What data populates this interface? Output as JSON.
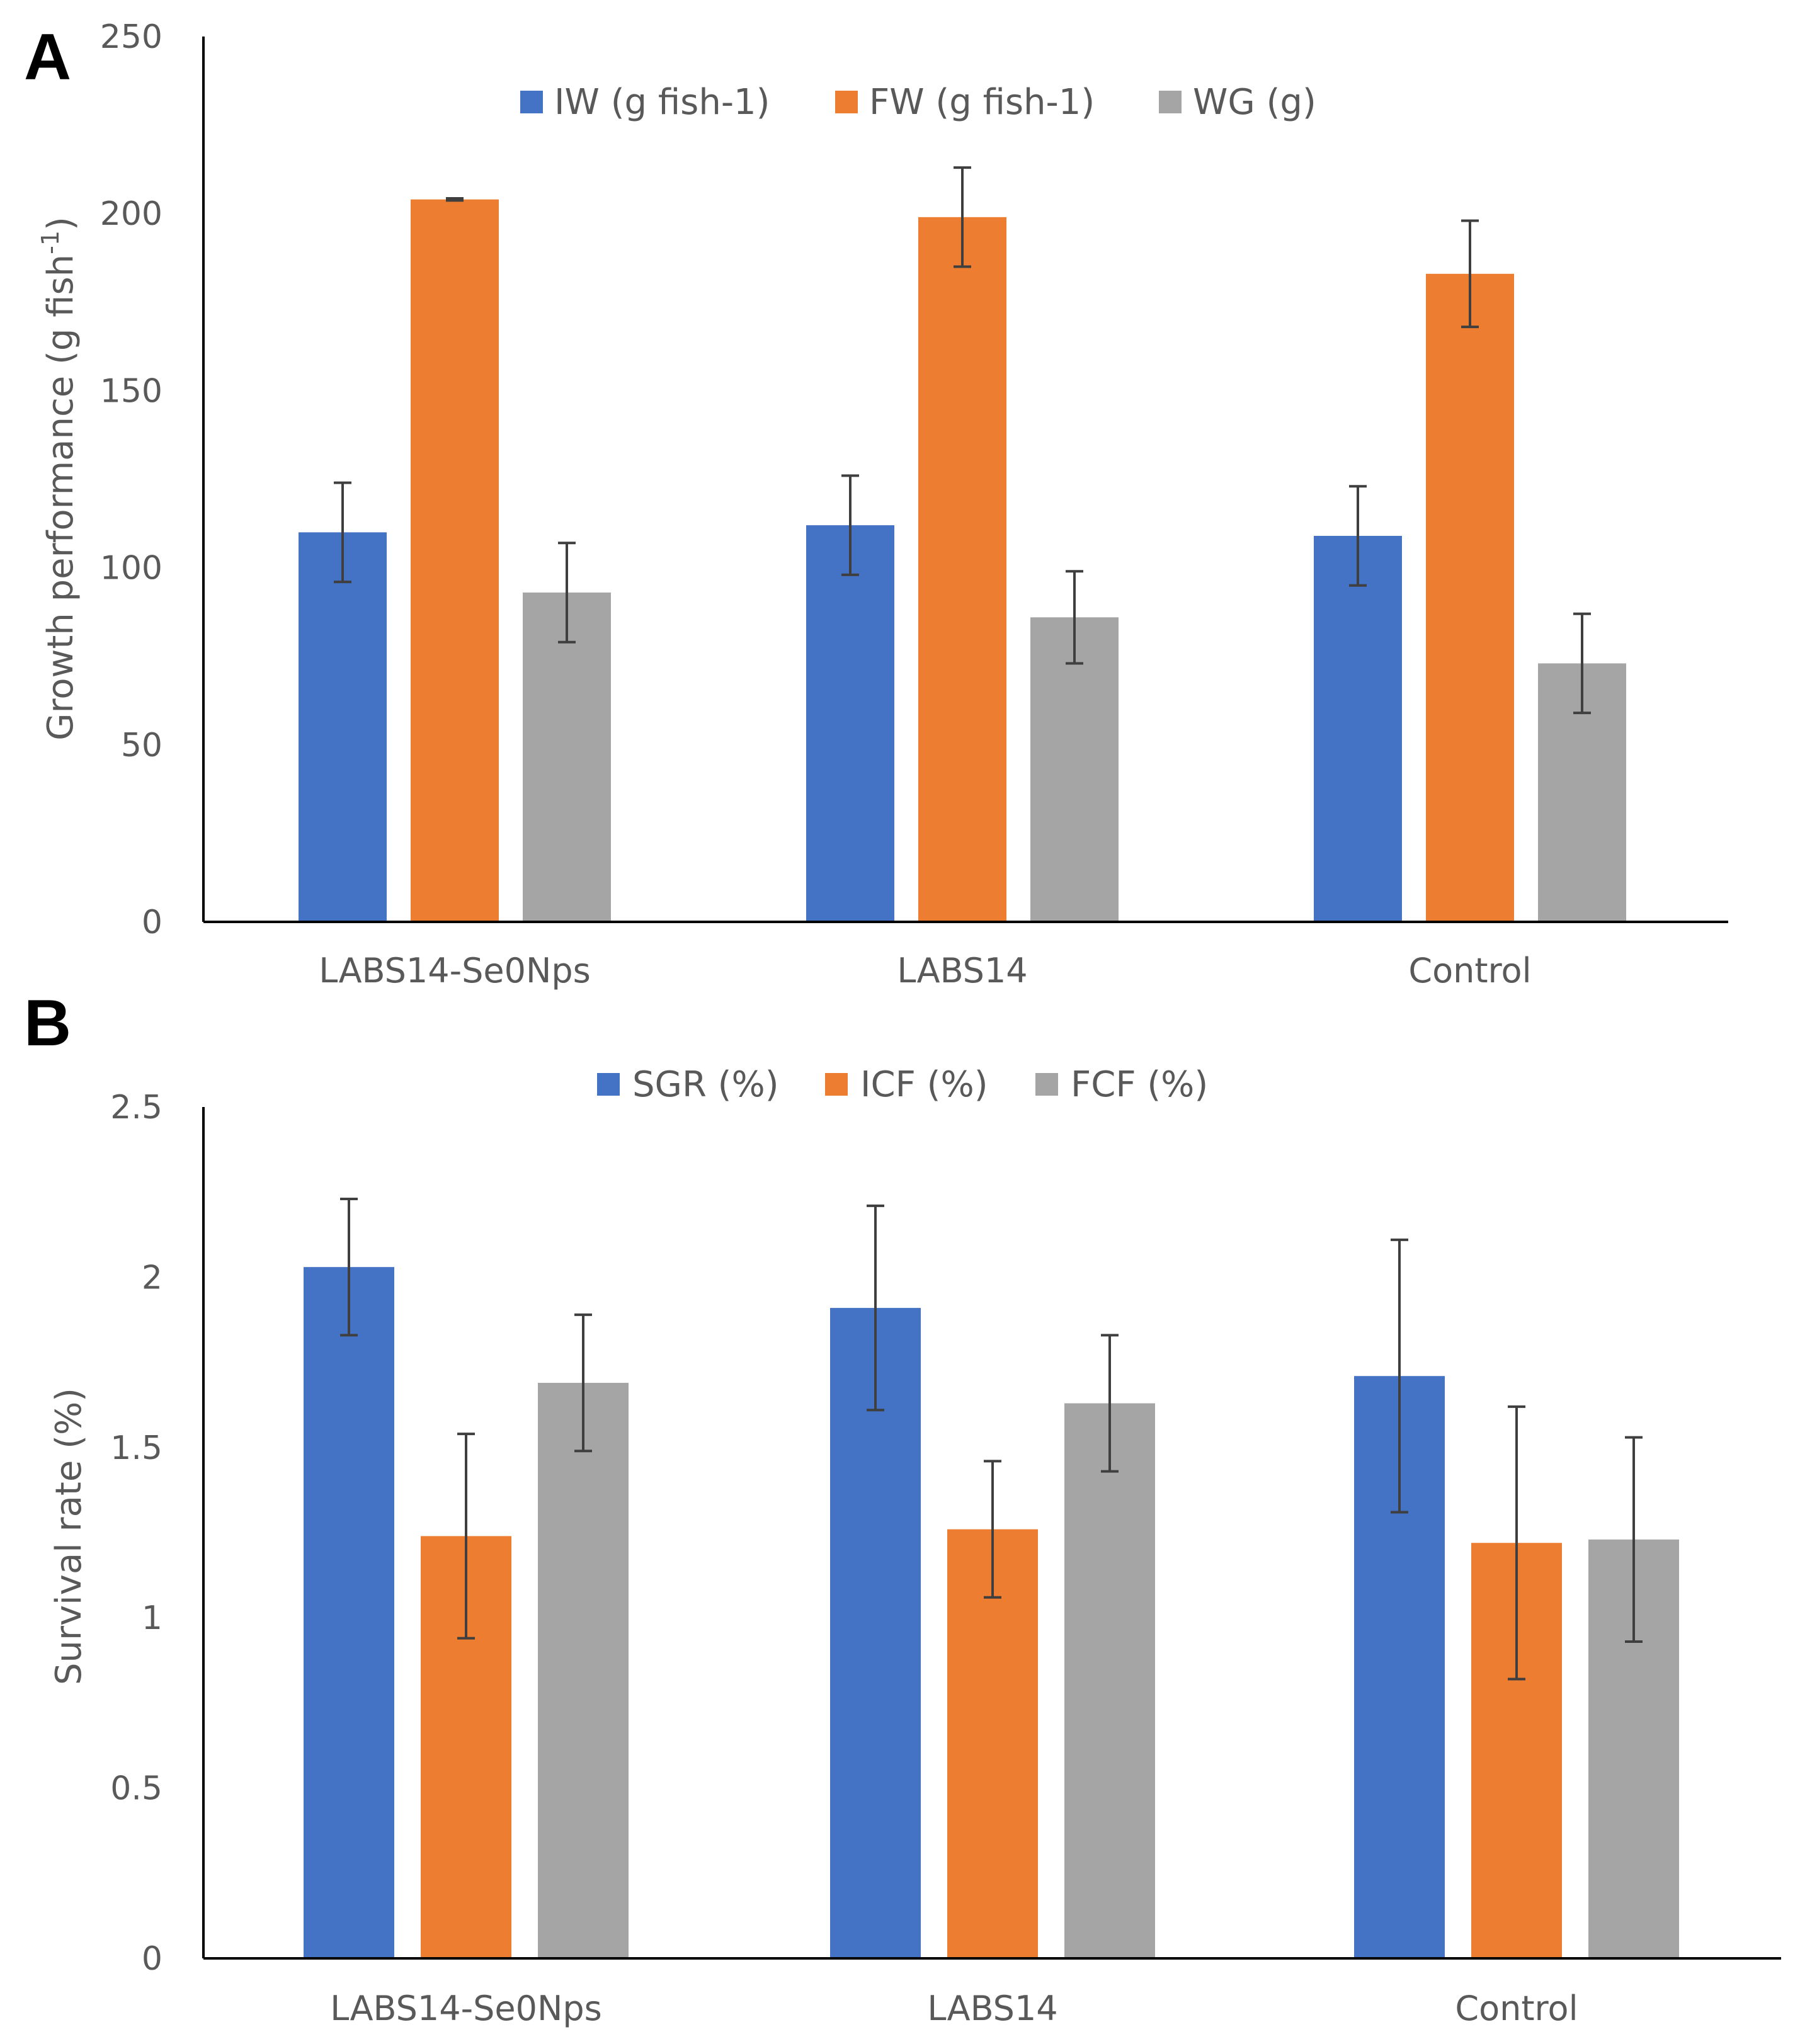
{
  "chart_data": [
    {
      "type": "bar",
      "panel": "A",
      "title": "",
      "xlabel": "",
      "ylabel": "Growth performance (g fish-1)",
      "ylabel_main": "Growth performance (g fish",
      "ylabel_sup": "-1",
      "ylabel_close": ")",
      "ylim": [
        0,
        250
      ],
      "yticks": [
        0,
        50,
        100,
        150,
        200,
        250
      ],
      "grid": false,
      "legend_position": "top",
      "categories": [
        "LABS14-Se0Nps",
        "LABS14",
        "Control"
      ],
      "series": [
        {
          "name": "IW (g fish-1)",
          "color": "#4472C4",
          "values": [
            110,
            112,
            109
          ],
          "errors": [
            14,
            14,
            14
          ]
        },
        {
          "name": "FW (g fish-1)",
          "color": "#ED7D31",
          "values": [
            204,
            199,
            183
          ],
          "errors": [
            0.3,
            14,
            15
          ]
        },
        {
          "name": "WG (g)",
          "color": "#A5A5A5",
          "values": [
            93,
            86,
            73
          ],
          "errors": [
            14,
            13,
            14
          ]
        }
      ]
    },
    {
      "type": "bar",
      "panel": "B",
      "title": "",
      "xlabel": "",
      "ylabel": "Survival rate  (%)",
      "ylim": [
        0,
        2.5
      ],
      "yticks": [
        0,
        0.5,
        1,
        1.5,
        2,
        2.5
      ],
      "grid": false,
      "legend_position": "top",
      "categories": [
        "LABS14-Se0Nps",
        "LABS14",
        "Control"
      ],
      "series": [
        {
          "name": "SGR (%)",
          "color": "#4472C4",
          "values": [
            2.03,
            1.91,
            1.71
          ],
          "errors": [
            0.2,
            0.3,
            0.4
          ]
        },
        {
          "name": "ICF (%)",
          "color": "#ED7D31",
          "values": [
            1.24,
            1.26,
            1.22
          ],
          "errors": [
            0.3,
            0.2,
            0.4
          ]
        },
        {
          "name": "FCF (%)",
          "color": "#A5A5A5",
          "values": [
            1.69,
            1.63,
            1.23
          ],
          "errors": [
            0.2,
            0.2,
            0.3
          ]
        }
      ]
    }
  ]
}
